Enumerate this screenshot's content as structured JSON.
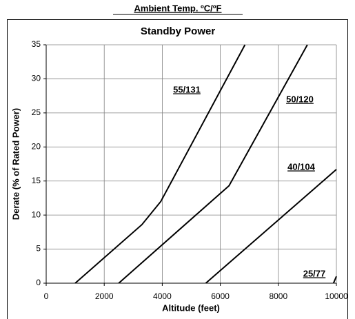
{
  "chart_data": {
    "type": "line",
    "header": "Ambient Temp. ºC/ºF",
    "title": "Standby Power",
    "x_label": "Altitude (feet)",
    "y_label": "Derate (% of Rated Power)",
    "xlim": [
      0,
      10000
    ],
    "xticks": [
      0,
      2000,
      4000,
      6000,
      8000,
      10000
    ],
    "ylim": [
      0,
      35
    ],
    "yticks": [
      0,
      5,
      10,
      15,
      20,
      25,
      30,
      35
    ],
    "grid": true,
    "series": [
      {
        "name": "55/131",
        "color": "#000000",
        "x": [
          1000,
          3300,
          3950,
          6850
        ],
        "values": [
          0,
          8.6,
          12,
          35
        ]
      },
      {
        "name": "50/120",
        "color": "#000000",
        "x": [
          2500,
          6300,
          9000
        ],
        "values": [
          0,
          14.3,
          35
        ]
      },
      {
        "name": "40/104",
        "color": "#000000",
        "x": [
          5500,
          10000
        ],
        "values": [
          0,
          16.7
        ]
      },
      {
        "name": "25/77",
        "color": "#000000",
        "x": [
          9900,
          10000
        ],
        "values": [
          0,
          1
        ]
      }
    ]
  }
}
